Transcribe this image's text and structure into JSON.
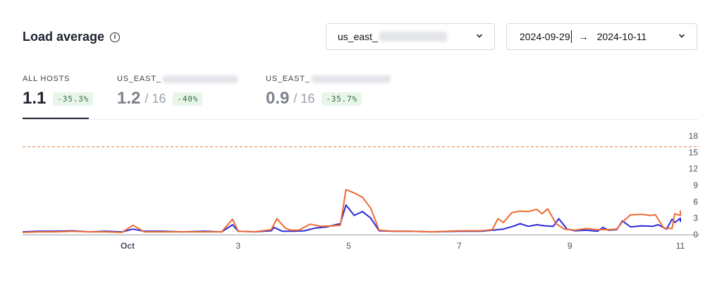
{
  "header": {
    "title": "Load average",
    "info_icon": "ⓘ",
    "hosts_select_value": "us_east_",
    "date_range": {
      "start": "2024-09-29",
      "arrow": "→",
      "end": "2024-10-11"
    }
  },
  "stats": [
    {
      "label": "ALL HOSTS",
      "value": "1.1",
      "total": "",
      "change": "-35.3%",
      "active": true
    },
    {
      "label": "US_EAST_",
      "value": "1.2",
      "total": "/ 16",
      "change": "-40%",
      "active": false
    },
    {
      "label": "US_EAST_",
      "value": "0.9",
      "total": "/ 16",
      "change": "-35.7%",
      "active": false
    }
  ],
  "colors": {
    "series_a": "#2a2ad8",
    "series_b": "#ee6a32",
    "threshold": "#d8864c",
    "badge_bg": "#e8f6ea",
    "badge_text": "#2f6a3c"
  },
  "chart_data": {
    "type": "line",
    "x_tick_labels": [
      "Oct",
      "3",
      "5",
      "7",
      "9",
      "11"
    ],
    "x_tick_days": [
      1,
      3,
      5,
      7,
      9,
      11
    ],
    "xlim_days": [
      -0.9,
      11.0
    ],
    "y_tick_labels": [
      "0",
      "3",
      "6",
      "9",
      "12",
      "15",
      "18"
    ],
    "ylim": [
      0,
      18
    ],
    "threshold": 16,
    "series": [
      {
        "color": "#2a2ad8",
        "points": [
          [
            -0.9,
            0.5
          ],
          [
            -0.6,
            0.6
          ],
          [
            -0.3,
            0.6
          ],
          [
            0.0,
            0.7
          ],
          [
            0.3,
            0.5
          ],
          [
            0.6,
            0.6
          ],
          [
            0.9,
            0.5
          ],
          [
            1.1,
            1.0
          ],
          [
            1.3,
            0.6
          ],
          [
            1.6,
            0.6
          ],
          [
            2.0,
            0.5
          ],
          [
            2.4,
            0.6
          ],
          [
            2.7,
            0.5
          ],
          [
            2.9,
            1.8
          ],
          [
            3.0,
            0.6
          ],
          [
            3.3,
            0.5
          ],
          [
            3.6,
            0.7
          ],
          [
            3.65,
            1.3
          ],
          [
            3.8,
            0.6
          ],
          [
            4.0,
            0.6
          ],
          [
            4.2,
            0.7
          ],
          [
            4.4,
            1.2
          ],
          [
            4.6,
            1.4
          ],
          [
            4.85,
            2.0
          ],
          [
            4.95,
            5.4
          ],
          [
            5.1,
            3.5
          ],
          [
            5.25,
            4.2
          ],
          [
            5.4,
            3.0
          ],
          [
            5.55,
            0.7
          ],
          [
            5.8,
            0.6
          ],
          [
            6.1,
            0.6
          ],
          [
            6.5,
            0.5
          ],
          [
            7.0,
            0.6
          ],
          [
            7.4,
            0.6
          ],
          [
            7.6,
            0.8
          ],
          [
            7.8,
            1.0
          ],
          [
            8.0,
            1.6
          ],
          [
            8.1,
            2.0
          ],
          [
            8.25,
            1.5
          ],
          [
            8.4,
            1.8
          ],
          [
            8.55,
            1.6
          ],
          [
            8.7,
            1.5
          ],
          [
            8.8,
            2.9
          ],
          [
            8.95,
            1.0
          ],
          [
            9.1,
            0.7
          ],
          [
            9.3,
            0.8
          ],
          [
            9.5,
            0.6
          ],
          [
            9.6,
            1.3
          ],
          [
            9.7,
            0.8
          ],
          [
            9.85,
            0.9
          ],
          [
            9.95,
            2.5
          ],
          [
            10.1,
            1.4
          ],
          [
            10.3,
            1.6
          ],
          [
            10.5,
            1.5
          ],
          [
            10.6,
            1.8
          ],
          [
            10.75,
            1.0
          ],
          [
            10.85,
            2.8
          ],
          [
            10.9,
            2.2
          ],
          [
            11.0,
            3.0
          ],
          [
            11.0,
            2.3
          ]
        ]
      },
      {
        "color": "#ee6a32",
        "points": [
          [
            -0.9,
            0.4
          ],
          [
            -0.6,
            0.5
          ],
          [
            -0.3,
            0.5
          ],
          [
            0.0,
            0.6
          ],
          [
            0.3,
            0.5
          ],
          [
            0.6,
            0.5
          ],
          [
            0.9,
            0.4
          ],
          [
            1.1,
            1.7
          ],
          [
            1.3,
            0.5
          ],
          [
            1.6,
            0.5
          ],
          [
            2.0,
            0.5
          ],
          [
            2.4,
            0.5
          ],
          [
            2.7,
            0.5
          ],
          [
            2.9,
            2.8
          ],
          [
            3.0,
            0.6
          ],
          [
            3.3,
            0.5
          ],
          [
            3.6,
            0.9
          ],
          [
            3.7,
            2.9
          ],
          [
            3.85,
            1.2
          ],
          [
            3.95,
            0.8
          ],
          [
            4.1,
            0.8
          ],
          [
            4.3,
            1.9
          ],
          [
            4.5,
            1.5
          ],
          [
            4.7,
            1.6
          ],
          [
            4.85,
            1.7
          ],
          [
            4.95,
            8.2
          ],
          [
            5.1,
            7.6
          ],
          [
            5.25,
            6.8
          ],
          [
            5.4,
            4.8
          ],
          [
            5.55,
            0.8
          ],
          [
            5.8,
            0.6
          ],
          [
            6.1,
            0.6
          ],
          [
            6.5,
            0.5
          ],
          [
            7.0,
            0.7
          ],
          [
            7.4,
            0.7
          ],
          [
            7.6,
            0.9
          ],
          [
            7.7,
            2.9
          ],
          [
            7.8,
            2.2
          ],
          [
            7.95,
            4.0
          ],
          [
            8.1,
            4.3
          ],
          [
            8.25,
            4.2
          ],
          [
            8.4,
            4.6
          ],
          [
            8.5,
            3.8
          ],
          [
            8.6,
            4.7
          ],
          [
            8.75,
            2.0
          ],
          [
            8.9,
            1.0
          ],
          [
            9.1,
            0.8
          ],
          [
            9.3,
            1.1
          ],
          [
            9.5,
            0.9
          ],
          [
            9.7,
            0.9
          ],
          [
            9.85,
            1.0
          ],
          [
            9.95,
            2.3
          ],
          [
            10.1,
            3.6
          ],
          [
            10.3,
            3.7
          ],
          [
            10.45,
            3.5
          ],
          [
            10.55,
            3.6
          ],
          [
            10.7,
            1.2
          ],
          [
            10.85,
            1.1
          ],
          [
            10.9,
            3.8
          ],
          [
            11.0,
            3.5
          ],
          [
            11.0,
            4.4
          ]
        ]
      }
    ]
  }
}
